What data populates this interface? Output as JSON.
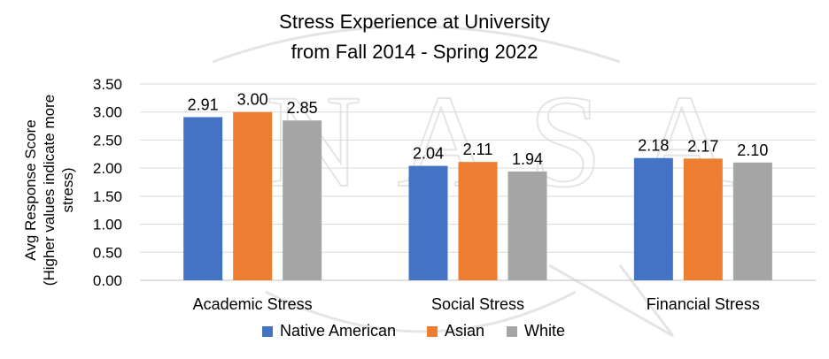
{
  "chart_data": {
    "type": "bar",
    "title_lines": [
      "Stress Experience at University",
      "from Fall 2014 - Spring 2022"
    ],
    "ylabel_lines": [
      "Avg Response Score",
      "(Higher values indicate more",
      "stress)"
    ],
    "xlabel": "",
    "categories": [
      "Academic Stress",
      "Social Stress",
      "Financial Stress"
    ],
    "series": [
      {
        "name": "Native American",
        "color": "#4472C4",
        "values": [
          2.91,
          2.04,
          2.18
        ],
        "labels": [
          "2.91",
          "2.04",
          "2.18"
        ]
      },
      {
        "name": "Asian",
        "color": "#ED7D31",
        "values": [
          3.0,
          2.11,
          2.17
        ],
        "labels": [
          "3.00",
          "2.11",
          "2.17"
        ]
      },
      {
        "name": "White",
        "color": "#A5A5A5",
        "values": [
          2.85,
          1.94,
          2.1
        ],
        "labels": [
          "2.85",
          "1.94",
          "2.10"
        ]
      }
    ],
    "yticks": [
      "0.00",
      "0.50",
      "1.00",
      "1.50",
      "2.00",
      "2.50",
      "3.00",
      "3.50"
    ],
    "ylim": [
      0,
      3.5
    ],
    "grid": true,
    "legend_position": "bottom",
    "watermark_text": "NASA"
  }
}
